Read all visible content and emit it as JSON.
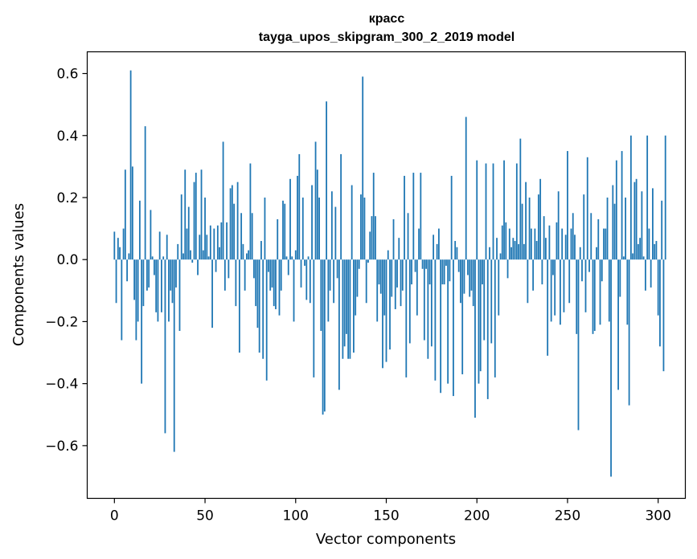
{
  "chart_data": {
    "type": "bar",
    "title": "красс",
    "subtitle": "tayga_upos_skipgram_300_2_2019 model",
    "xlabel": "Vector components",
    "ylabel": "Components values",
    "xlim": [
      -15,
      315
    ],
    "ylim": [
      -0.77,
      0.67
    ],
    "xticks": [
      0,
      50,
      100,
      150,
      200,
      250,
      300
    ],
    "xtick_labels": [
      "0",
      "50",
      "100",
      "150",
      "200",
      "250",
      "300"
    ],
    "yticks": [
      -0.6,
      -0.4,
      -0.2,
      0.0,
      0.2,
      0.4,
      0.6
    ],
    "ytick_labels": [
      "−0.6",
      "−0.4",
      "−0.2",
      "0.0",
      "0.2",
      "0.4",
      "0.6"
    ],
    "bar_color": "#1f77b4",
    "values": [
      0.09,
      -0.14,
      0.07,
      0.04,
      -0.26,
      0.1,
      0.29,
      -0.07,
      0.02,
      0.61,
      0.3,
      -0.13,
      -0.26,
      -0.2,
      0.19,
      -0.4,
      -0.15,
      0.43,
      -0.1,
      -0.09,
      0.16,
      0.01,
      -0.05,
      -0.17,
      -0.2,
      0.09,
      -0.17,
      0.01,
      -0.56,
      0.08,
      -0.2,
      -0.1,
      -0.14,
      -0.62,
      -0.09,
      0.05,
      -0.23,
      0.21,
      0.02,
      0.29,
      0.1,
      0.17,
      0.03,
      -0.01,
      0.25,
      0.28,
      -0.05,
      0.08,
      0.29,
      0.03,
      0.2,
      0.08,
      0.01,
      0.11,
      -0.22,
      0.1,
      -0.04,
      0.11,
      0.04,
      0.12,
      0.38,
      -0.1,
      0.12,
      -0.06,
      0.23,
      0.24,
      0.18,
      -0.15,
      0.25,
      -0.3,
      0.15,
      0.05,
      -0.1,
      0.02,
      0.03,
      0.31,
      0.15,
      -0.06,
      -0.15,
      -0.22,
      -0.3,
      0.06,
      -0.32,
      0.2,
      -0.39,
      -0.04,
      -0.1,
      -0.09,
      -0.15,
      -0.16,
      0.13,
      -0.18,
      -0.1,
      0.19,
      0.18,
      0.01,
      -0.05,
      0.26,
      0.01,
      -0.2,
      0.03,
      0.27,
      0.34,
      -0.09,
      0.2,
      -0.02,
      -0.13,
      0.01,
      -0.14,
      0.24,
      -0.38,
      0.38,
      0.29,
      0.2,
      -0.23,
      -0.5,
      -0.49,
      0.51,
      -0.2,
      -0.1,
      0.22,
      -0.14,
      0.17,
      -0.06,
      -0.42,
      0.34,
      -0.32,
      -0.28,
      -0.24,
      -0.32,
      -0.32,
      0.24,
      -0.3,
      -0.18,
      -0.12,
      -0.03,
      0.21,
      0.59,
      0.2,
      -0.14,
      -0.01,
      0.09,
      0.14,
      0.28,
      0.14,
      -0.2,
      -0.08,
      -0.11,
      -0.35,
      -0.18,
      -0.33,
      0.03,
      -0.29,
      -0.12,
      0.13,
      -0.16,
      -0.09,
      0.07,
      -0.15,
      -0.1,
      0.27,
      -0.38,
      0.15,
      -0.27,
      -0.08,
      0.28,
      -0.04,
      -0.18,
      0.1,
      0.28,
      -0.03,
      -0.26,
      -0.03,
      -0.32,
      -0.08,
      -0.28,
      0.08,
      -0.39,
      0.05,
      0.1,
      -0.43,
      -0.08,
      -0.08,
      -0.02,
      -0.4,
      -0.07,
      0.27,
      -0.44,
      0.06,
      0.04,
      -0.04,
      -0.14,
      -0.37,
      -0.11,
      0.46,
      -0.05,
      -0.12,
      -0.1,
      -0.15,
      -0.51,
      0.32,
      -0.4,
      -0.36,
      -0.08,
      -0.26,
      0.31,
      -0.45,
      0.04,
      -0.27,
      0.31,
      -0.38,
      0.07,
      -0.18,
      0.02,
      0.11,
      0.32,
      0.12,
      -0.06,
      0.1,
      0.04,
      0.07,
      0.06,
      0.31,
      0.05,
      0.39,
      0.18,
      0.05,
      0.25,
      -0.14,
      0.2,
      0.1,
      -0.1,
      0.1,
      0.06,
      0.21,
      0.26,
      -0.08,
      0.14,
      0.07,
      -0.31,
      0.11,
      -0.2,
      -0.05,
      -0.18,
      0.12,
      0.22,
      -0.21,
      0.1,
      -0.17,
      0.08,
      0.35,
      -0.14,
      0.1,
      0.15,
      0.08,
      -0.24,
      -0.55,
      0.04,
      -0.07,
      0.21,
      -0.17,
      0.33,
      -0.04,
      0.15,
      -0.24,
      -0.23,
      0.04,
      0.13,
      -0.21,
      -0.07,
      0.1,
      0.1,
      0.2,
      -0.2,
      -0.7,
      0.24,
      0.18,
      0.32,
      -0.42,
      -0.12,
      0.35,
      0.01,
      0.2,
      -0.21,
      -0.47,
      0.4,
      0.02,
      0.25,
      0.26,
      0.05,
      0.07,
      0.22,
      0.01,
      -0.1,
      0.4,
      0.1,
      -0.09,
      0.23,
      0.05,
      0.06,
      -0.18,
      -0.28,
      0.19,
      -0.36,
      0.4
    ]
  }
}
